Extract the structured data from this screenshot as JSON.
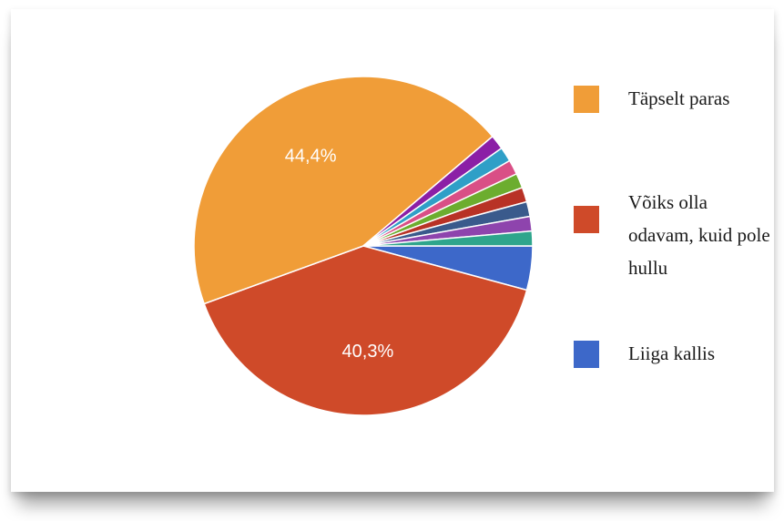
{
  "chart_data": {
    "type": "pie",
    "slices": [
      {
        "name": "Täpselt paras",
        "value": 44.4,
        "label": "44,4%",
        "color": "#f09d38"
      },
      {
        "name": "Võiks olla odavam, kuid pole hullu",
        "value": 40.3,
        "label": "40,3%",
        "color": "#cf4a29"
      },
      {
        "name": "Liiga kallis",
        "value": 4.2,
        "label": "",
        "color": "#3d68c9"
      },
      {
        "value": 1.4,
        "label": "",
        "color": "#2ea58c"
      },
      {
        "value": 1.4,
        "label": "",
        "color": "#8e44ad"
      },
      {
        "value": 1.4,
        "label": "",
        "color": "#3a5a8c"
      },
      {
        "value": 1.4,
        "label": "",
        "color": "#b83226"
      },
      {
        "value": 1.4,
        "label": "",
        "color": "#6cad2f"
      },
      {
        "value": 1.4,
        "label": "",
        "color": "#d94f86"
      },
      {
        "value": 1.4,
        "label": "",
        "color": "#2f9fc7"
      },
      {
        "value": 1.4,
        "label": "",
        "color": "#8b1fa6"
      }
    ]
  },
  "legend": [
    {
      "label": "Täpselt paras",
      "color": "#f09d38"
    },
    {
      "label": "Võiks olla odavam, kuid pole hullu",
      "color": "#cf4a29"
    },
    {
      "label": "Liiga kallis",
      "color": "#3d68c9"
    }
  ]
}
